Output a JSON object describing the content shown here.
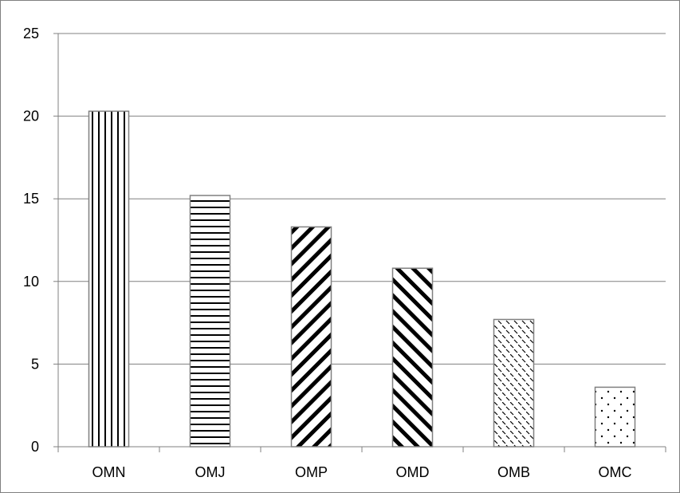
{
  "chart_data": {
    "type": "bar",
    "title": "",
    "xlabel": "",
    "ylabel": "",
    "categories": [
      "OMN",
      "OMJ",
      "OMP",
      "OMD",
      "OMB",
      "OMC"
    ],
    "values": [
      20.3,
      15.2,
      13.3,
      10.8,
      7.7,
      3.6
    ],
    "ylim": [
      0,
      25
    ],
    "yticks": [
      "0",
      "5",
      "10",
      "15",
      "20",
      "25"
    ],
    "grid": true,
    "legend": "none",
    "patterns": [
      "vertical-lines",
      "horizontal-lines",
      "diagonal-down",
      "diagonal-up",
      "dashed-diagonal",
      "dots"
    ],
    "colors": {
      "bar_fill": "#ffffff",
      "pattern": "#000000",
      "bar_border": "#808080",
      "gridline": "#808080",
      "axis": "#808080"
    }
  }
}
